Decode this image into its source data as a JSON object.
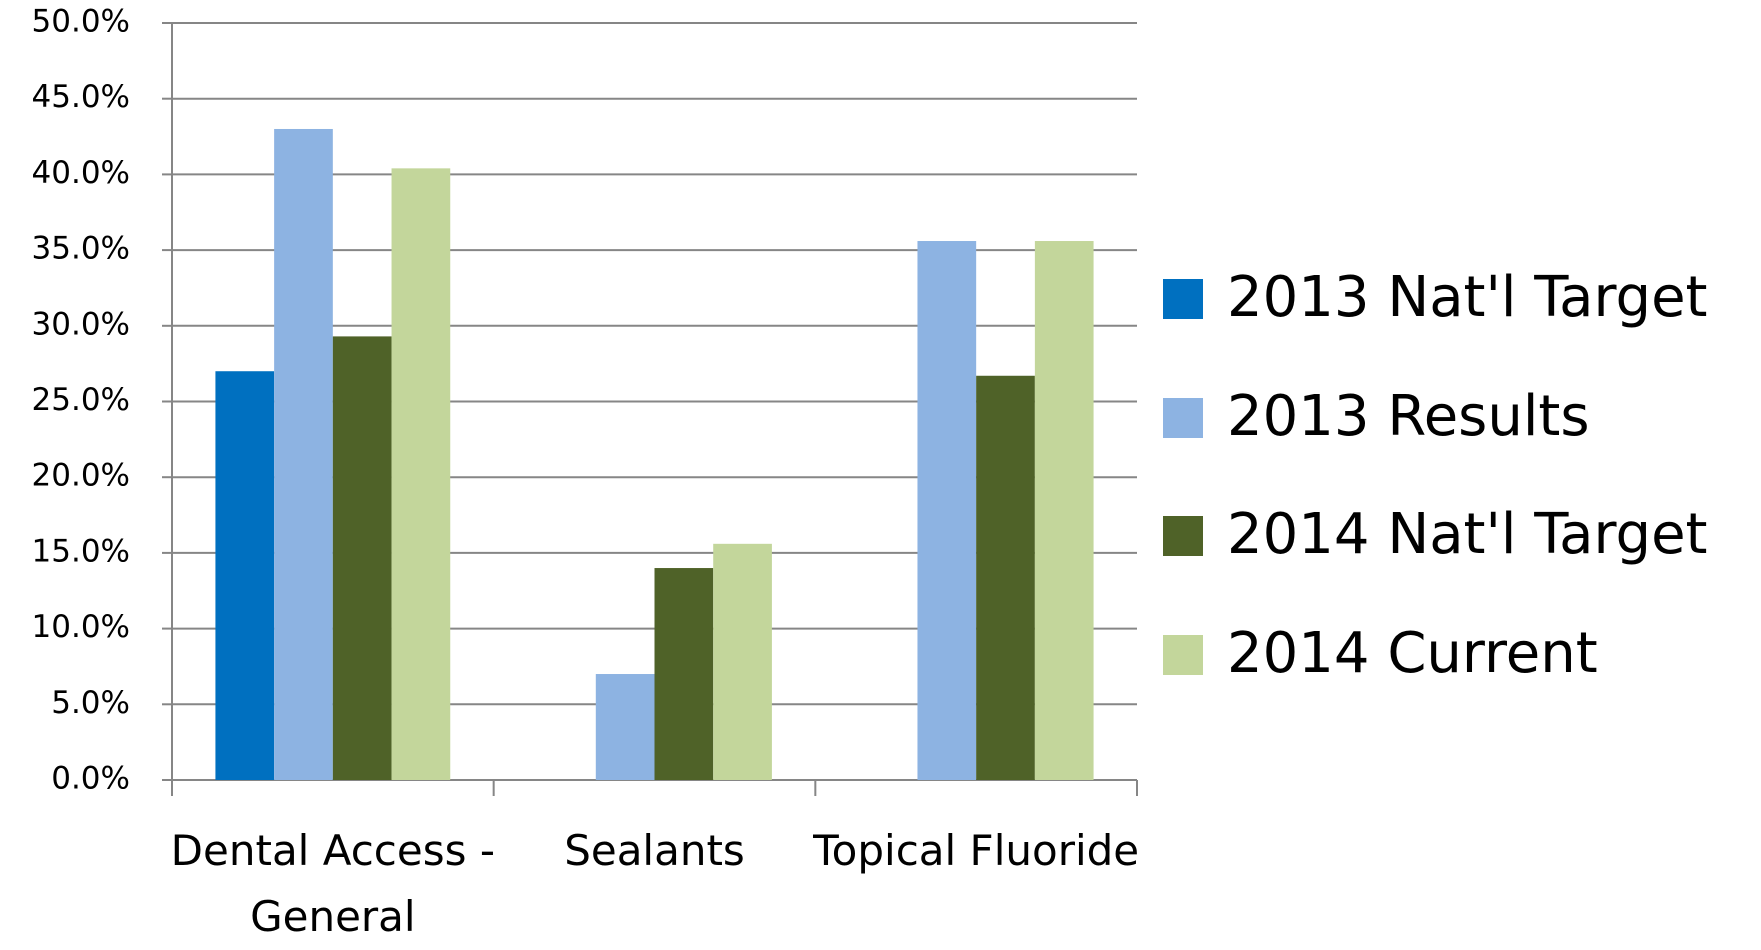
{
  "chart_data": {
    "type": "bar",
    "categories": [
      "Dental Access - General",
      "Sealants",
      "Topical Fluoride"
    ],
    "series": [
      {
        "name": "2013 Nat'l Target",
        "color": "#0070c0",
        "values": [
          27.0,
          null,
          null
        ]
      },
      {
        "name": "2013 Results",
        "color": "#8db3e2",
        "values": [
          43.0,
          7.0,
          35.6
        ]
      },
      {
        "name": "2014 Nat'l Target",
        "color": "#4f6228",
        "values": [
          29.3,
          14.0,
          26.7
        ]
      },
      {
        "name": "2014 Current",
        "color": "#c3d69b",
        "values": [
          40.4,
          15.6,
          35.6
        ]
      }
    ],
    "ylim": [
      0,
      50
    ],
    "yticks": [
      {
        "value": 0,
        "label": "0.0%"
      },
      {
        "value": 5,
        "label": "5.0%"
      },
      {
        "value": 10,
        "label": "10.0%"
      },
      {
        "value": 15,
        "label": "15.0%"
      },
      {
        "value": 20,
        "label": "20.0%"
      },
      {
        "value": 25,
        "label": "25.0%"
      },
      {
        "value": 30,
        "label": "30.0%"
      },
      {
        "value": 35,
        "label": "35.0%"
      },
      {
        "value": 40,
        "label": "40.0%"
      },
      {
        "value": 45,
        "label": "45.0%"
      },
      {
        "value": 50,
        "label": "50.0%"
      }
    ],
    "grid": true,
    "legend": "right"
  }
}
